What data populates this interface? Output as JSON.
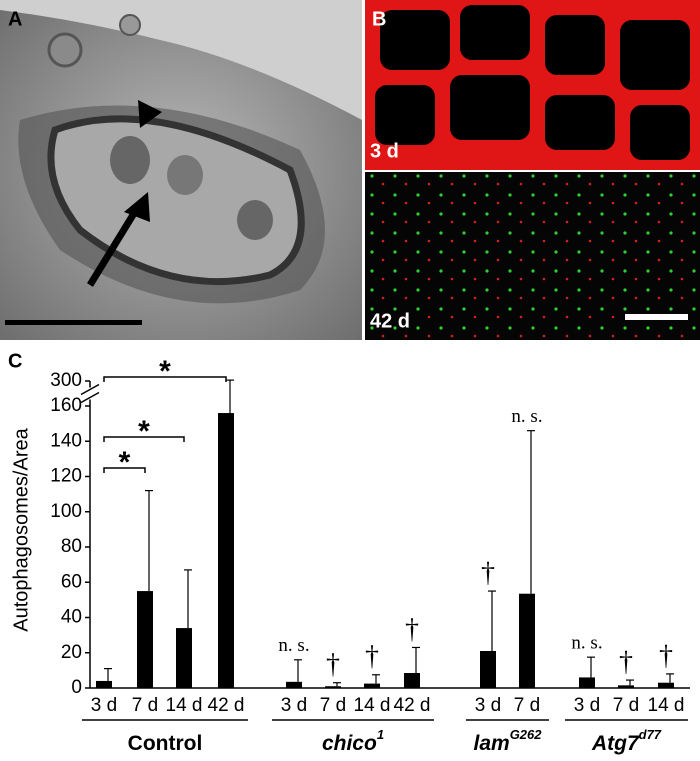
{
  "panel_labels": [
    "A",
    "B",
    "C"
  ],
  "image_labels": [
    "3 d",
    "42 d"
  ],
  "chart_data": {
    "type": "bar",
    "y_label": "Autophagosomes/Area",
    "ylim": [
      0,
      300
    ],
    "y_break": [
      160,
      300
    ],
    "yticks": [
      0,
      20,
      40,
      60,
      80,
      100,
      120,
      140,
      160,
      300
    ],
    "color": "#000000",
    "brackets": [
      "*",
      "*",
      "*"
    ],
    "groups": [
      {
        "name": "Control",
        "italic": false,
        "categories": [
          "3 d",
          "7 d",
          "14 d",
          "42 d"
        ],
        "values": [
          4,
          55,
          34,
          156
        ],
        "errors": [
          7,
          57,
          33,
          149
        ],
        "annotations": [
          null,
          null,
          null,
          null
        ]
      },
      {
        "name": "chico",
        "superscript": "1",
        "italic": true,
        "categories": [
          "3 d",
          "7 d",
          "14 d",
          "42 d"
        ],
        "values": [
          3.5,
          1,
          2.5,
          8.5
        ],
        "errors": [
          12.5,
          2,
          5,
          14.5
        ],
        "annotations": [
          "n. s.",
          "†",
          "†",
          "†"
        ]
      },
      {
        "name": "lam",
        "superscript": "G262",
        "italic": true,
        "categories": [
          "3 d",
          "7 d"
        ],
        "values": [
          21,
          53.5
        ],
        "errors": [
          34,
          92.5
        ],
        "annotations": [
          "†",
          "n. s."
        ]
      },
      {
        "name": "Atg7",
        "superscript": "d77",
        "italic": true,
        "categories": [
          "3 d",
          "7 d",
          "14 d"
        ],
        "values": [
          6,
          1.5,
          3
        ],
        "errors": [
          11.5,
          3,
          5
        ],
        "annotations": [
          "n. s.",
          "†",
          "†"
        ]
      }
    ]
  }
}
